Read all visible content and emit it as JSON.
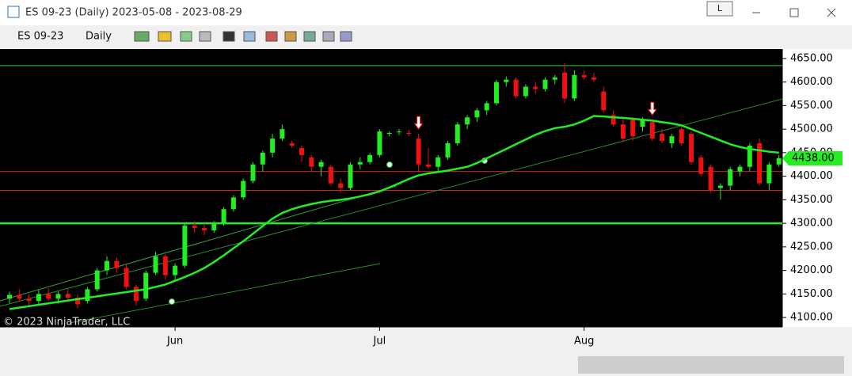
{
  "window": {
    "title": "ES 09-23 (Daily)  2023-05-08 - 2023-08-29",
    "instrument": "ES 09-23",
    "interval": "Daily",
    "button": "L"
  },
  "chart_data": {
    "type": "candlestick",
    "categories": [
      null,
      null,
      null,
      null,
      null,
      null,
      null,
      null,
      null,
      null,
      null,
      null,
      null,
      null,
      null,
      null,
      null,
      "Jun",
      null,
      null,
      null,
      null,
      null,
      null,
      null,
      null,
      null,
      null,
      null,
      null,
      null,
      null,
      null,
      null,
      null,
      null,
      null,
      null,
      "Jul",
      null,
      null,
      null,
      null,
      null,
      null,
      null,
      null,
      null,
      null,
      null,
      null,
      null,
      null,
      null,
      null,
      null,
      null,
      null,
      null,
      "Aug",
      null,
      null,
      null,
      null,
      null,
      null,
      null,
      null,
      null,
      null,
      null,
      null,
      null,
      null,
      null,
      null,
      null,
      null,
      null,
      null
    ],
    "open": [
      4140,
      4148,
      4140,
      4135,
      4150,
      4140,
      4150,
      4142,
      4135,
      4160,
      4200,
      4220,
      4205,
      4165,
      4140,
      4195,
      4230,
      4190,
      4210,
      4295,
      4290,
      4285,
      4300,
      4330,
      4355,
      4390,
      4425,
      4450,
      4480,
      4470,
      4460,
      4440,
      4420,
      4420,
      4385,
      4375,
      4425,
      4430,
      4445,
      4490,
      4495,
      4492,
      4480,
      4425,
      4420,
      4440,
      4470,
      4510,
      4525,
      4540,
      4555,
      4600,
      4605,
      4570,
      4590,
      4585,
      4605,
      4620,
      4565,
      4615,
      4610,
      4580,
      4530,
      4510,
      4520,
      4505,
      4515,
      4490,
      4470,
      4500,
      4490,
      4440,
      4420,
      4375,
      4380,
      4410,
      4420,
      4470,
      4385,
      4425
    ],
    "high": [
      4155,
      4160,
      4150,
      4158,
      4162,
      4155,
      4160,
      4150,
      4165,
      4205,
      4230,
      4228,
      4215,
      4170,
      4200,
      4240,
      4235,
      4215,
      4300,
      4305,
      4300,
      4305,
      4335,
      4360,
      4395,
      4430,
      4455,
      4490,
      4510,
      4475,
      4465,
      4445,
      4435,
      4425,
      4395,
      4430,
      4440,
      4450,
      4500,
      4495,
      4500,
      4498,
      4490,
      4460,
      4445,
      4475,
      4515,
      4530,
      4545,
      4560,
      4605,
      4612,
      4610,
      4595,
      4600,
      4610,
      4615,
      4640,
      4625,
      4625,
      4620,
      4590,
      4540,
      4525,
      4525,
      4525,
      4520,
      4500,
      4490,
      4505,
      4495,
      4445,
      4425,
      4385,
      4420,
      4425,
      4470,
      4480,
      4430,
      4445
    ],
    "low": [
      4130,
      4135,
      4125,
      4128,
      4135,
      4130,
      4138,
      4120,
      4130,
      4155,
      4190,
      4195,
      4160,
      4125,
      4135,
      4190,
      4180,
      4180,
      4205,
      4280,
      4275,
      4280,
      4295,
      4325,
      4350,
      4385,
      4410,
      4440,
      4475,
      4460,
      4430,
      4410,
      4400,
      4380,
      4365,
      4370,
      4415,
      4425,
      4440,
      4485,
      4488,
      4485,
      4410,
      4415,
      4410,
      4435,
      4465,
      4500,
      4515,
      4530,
      4550,
      4590,
      4565,
      4565,
      4575,
      4580,
      4595,
      4555,
      4560,
      4605,
      4600,
      4535,
      4505,
      4475,
      4475,
      4495,
      4475,
      4470,
      4460,
      4465,
      4425,
      4400,
      4365,
      4350,
      4370,
      4400,
      4410,
      4380,
      4370,
      4420
    ],
    "close": [
      4148,
      4140,
      4135,
      4150,
      4140,
      4150,
      4142,
      4128,
      4160,
      4200,
      4220,
      4205,
      4165,
      4135,
      4195,
      4230,
      4190,
      4210,
      4295,
      4290,
      4285,
      4300,
      4330,
      4355,
      4390,
      4425,
      4450,
      4480,
      4500,
      4465,
      4445,
      4420,
      4430,
      4385,
      4375,
      4425,
      4430,
      4445,
      4495,
      4492,
      4495,
      4490,
      4425,
      4420,
      4440,
      4470,
      4510,
      4525,
      4540,
      4555,
      4600,
      4605,
      4570,
      4590,
      4585,
      4605,
      4610,
      4565,
      4615,
      4610,
      4605,
      4540,
      4510,
      4480,
      4485,
      4520,
      4480,
      4475,
      4485,
      4470,
      4430,
      4405,
      4370,
      4380,
      4415,
      4420,
      4465,
      4385,
      4425,
      4438
    ],
    "up_color": "#22ee22",
    "down_color": "#ee1111",
    "ma_values": [
      4118,
      4121,
      4124,
      4127,
      4130,
      4133,
      4136,
      4139,
      4142,
      4145,
      4148,
      4151,
      4154,
      4157,
      4160,
      4165,
      4170,
      4178,
      4186,
      4195,
      4205,
      4218,
      4232,
      4247,
      4262,
      4278,
      4294,
      4310,
      4322,
      4330,
      4336,
      4341,
      4345,
      4348,
      4350,
      4353,
      4357,
      4362,
      4368,
      4376,
      4385,
      4394,
      4402,
      4406,
      4409,
      4412,
      4416,
      4420,
      4428,
      4438,
      4448,
      4458,
      4468,
      4478,
      4488,
      4496,
      4502,
      4505,
      4510,
      4518,
      4528,
      4527,
      4525,
      4524,
      4522,
      4520,
      4518,
      4515,
      4512,
      4508,
      4500,
      4492,
      4484,
      4476,
      4468,
      4462,
      4458,
      4455,
      4452,
      4450
    ],
    "ma_color": "#22ee22",
    "levels": [
      4635,
      4410,
      4370,
      4300
    ],
    "level_colors": [
      "#22cc22",
      "#cc2222",
      "#cc2222",
      "#22ee22"
    ],
    "ylim": [
      4080,
      4670
    ],
    "yticks": [
      {
        "value": 4100,
        "label": "4100.00"
      },
      {
        "value": 4150,
        "label": "4150.00"
      },
      {
        "value": 4200,
        "label": "4200.00"
      },
      {
        "value": 4250,
        "label": "4250.00"
      },
      {
        "value": 4300,
        "label": "4300.00"
      },
      {
        "value": 4350,
        "label": "4350.00"
      },
      {
        "value": 4400,
        "label": "4400.00"
      },
      {
        "value": 4450,
        "label": "4450.00"
      },
      {
        "value": 4500,
        "label": "4500.00"
      },
      {
        "value": 4550,
        "label": "4550.00"
      },
      {
        "value": 4600,
        "label": "4600.00"
      },
      {
        "value": 4650,
        "label": "4650.00"
      }
    ],
    "last_price": {
      "value": 4438,
      "label": "4438.00"
    },
    "copyright": "© 2023 NinjaTrader, LLC"
  }
}
